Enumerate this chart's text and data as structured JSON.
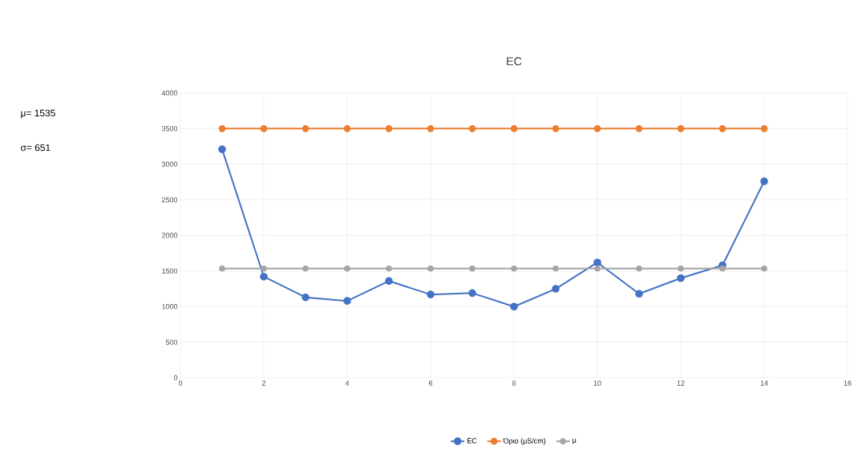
{
  "chart_data": {
    "type": "line",
    "title": "EC",
    "x": [
      1,
      2,
      3,
      4,
      5,
      6,
      7,
      8,
      9,
      10,
      11,
      12,
      13,
      14
    ],
    "series": [
      {
        "name": "EC",
        "color": "#4472c4",
        "values": [
          3210,
          1420,
          1130,
          1080,
          1360,
          1170,
          1190,
          1000,
          1250,
          1620,
          1180,
          1400,
          1580,
          2760
        ]
      },
      {
        "name": "Όριο (μS/cm)",
        "color": "#ed7d31",
        "values": [
          3500,
          3500,
          3500,
          3500,
          3500,
          3500,
          3500,
          3500,
          3500,
          3500,
          3500,
          3500,
          3500,
          3500
        ]
      },
      {
        "name": "μ",
        "color": "#a5a5a5",
        "values": [
          1535,
          1535,
          1535,
          1535,
          1535,
          1535,
          1535,
          1535,
          1535,
          1535,
          1535,
          1535,
          1535,
          1535
        ]
      }
    ],
    "xlim": [
      0,
      16
    ],
    "xticks": [
      0,
      2,
      4,
      6,
      8,
      10,
      12,
      14,
      16
    ],
    "ylim": [
      0,
      4000
    ],
    "yticks": [
      0,
      500,
      1000,
      1500,
      2000,
      2500,
      3000,
      3500,
      4000
    ],
    "grid": true,
    "legend": "bottom",
    "marker": "circle",
    "line_style": "solid",
    "annotations": [
      "μ= 1535",
      "σ= 651"
    ]
  }
}
